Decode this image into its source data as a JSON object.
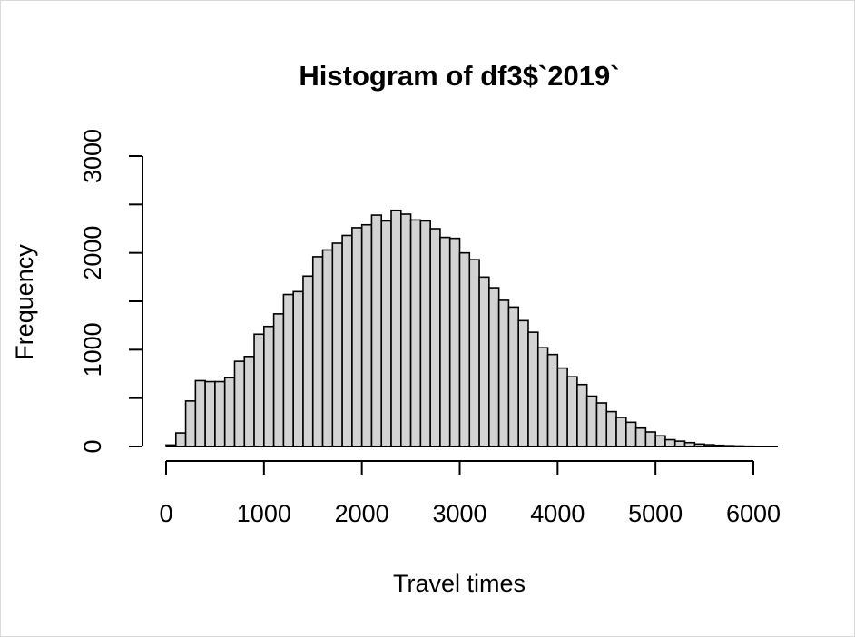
{
  "chart_data": {
    "type": "bar",
    "title": "Histogram of df3$`2019`",
    "xlabel": "Travel times",
    "ylabel": "Frequency",
    "bin_width": 100,
    "bin_start": 0,
    "xlim": [
      0,
      6250
    ],
    "ylim": [
      0,
      3000
    ],
    "x_ticks": [
      0,
      1000,
      2000,
      3000,
      4000,
      5000,
      6000
    ],
    "x_tick_labels": [
      "0",
      "1000",
      "2000",
      "3000",
      "4000",
      "5000",
      "6000"
    ],
    "y_ticks": [
      0,
      500,
      1000,
      1500,
      2000,
      2500,
      3000
    ],
    "y_tick_labels": [
      "0",
      "",
      "1000",
      "",
      "2000",
      "",
      "3000"
    ],
    "bar_fill": "#d3d3d3",
    "values": [
      15,
      140,
      470,
      680,
      670,
      670,
      710,
      880,
      930,
      1160,
      1240,
      1370,
      1570,
      1600,
      1760,
      1960,
      2030,
      2100,
      2180,
      2260,
      2290,
      2390,
      2330,
      2440,
      2400,
      2340,
      2330,
      2250,
      2160,
      2150,
      2000,
      1930,
      1750,
      1640,
      1510,
      1440,
      1300,
      1180,
      1020,
      950,
      810,
      720,
      640,
      520,
      450,
      360,
      300,
      250,
      190,
      150,
      110,
      70,
      55,
      40,
      25,
      18,
      12,
      8,
      5,
      3
    ]
  }
}
